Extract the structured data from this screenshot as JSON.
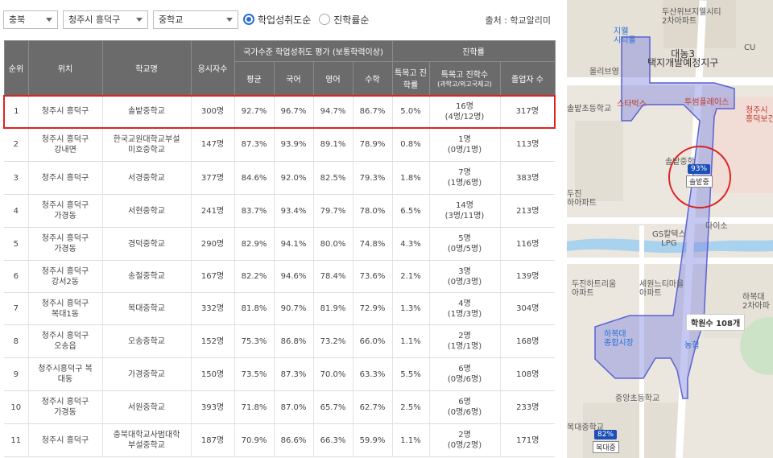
{
  "filters": {
    "region": "충북",
    "district": "청주시 흥덕구",
    "level": "중학교",
    "sort_options": [
      "학업성취도순",
      "진학률순"
    ],
    "source": "출처 : 학교알리미"
  },
  "table": {
    "headers": {
      "rank": "순위",
      "location": "위치",
      "school": "학교명",
      "examinees": "응시자수",
      "national_group": "국가수준 학업성취도 평가 (보통학력이상)",
      "avg": "평균",
      "korean": "국어",
      "english": "영어",
      "math": "수학",
      "advance_group": "진학률",
      "special_rate": "특목고 진학률",
      "special_count": "특목고 진학수",
      "special_count_sub": "(과학고/외고국제고)",
      "graduates": "졸업자 수"
    },
    "rows": [
      {
        "rank": "1",
        "loc": [
          "청주시 흥덕구"
        ],
        "school": [
          "솔밭중학교"
        ],
        "n": "300명",
        "avg": "92.7%",
        "kor": "96.7%",
        "eng": "94.7%",
        "math": "86.7%",
        "rate": "5.0%",
        "cnt": [
          "16명",
          "(4명/12명)"
        ],
        "grad": "317명"
      },
      {
        "rank": "2",
        "loc": [
          "청주시 흥덕구",
          "강내면"
        ],
        "school": [
          "한국교원대학교부설",
          "미호중학교"
        ],
        "n": "147명",
        "avg": "87.3%",
        "kor": "93.9%",
        "eng": "89.1%",
        "math": "78.9%",
        "rate": "0.8%",
        "cnt": [
          "1명",
          "(0명/1명)"
        ],
        "grad": "113명"
      },
      {
        "rank": "3",
        "loc": [
          "청주시 흥덕구"
        ],
        "school": [
          "서경중학교"
        ],
        "n": "377명",
        "avg": "84.6%",
        "kor": "92.0%",
        "eng": "82.5%",
        "math": "79.3%",
        "rate": "1.8%",
        "cnt": [
          "7명",
          "(1명/6명)"
        ],
        "grad": "383명"
      },
      {
        "rank": "4",
        "loc": [
          "청주시 흥덕구",
          "가경동"
        ],
        "school": [
          "서현중학교"
        ],
        "n": "241명",
        "avg": "83.7%",
        "kor": "93.4%",
        "eng": "79.7%",
        "math": "78.0%",
        "rate": "6.5%",
        "cnt": [
          "14명",
          "(3명/11명)"
        ],
        "grad": "213명"
      },
      {
        "rank": "5",
        "loc": [
          "청주시 흥덕구",
          "가경동"
        ],
        "school": [
          "경덕중학교"
        ],
        "n": "290명",
        "avg": "82.9%",
        "kor": "94.1%",
        "eng": "80.0%",
        "math": "74.8%",
        "rate": "4.3%",
        "cnt": [
          "5명",
          "(0명/5명)"
        ],
        "grad": "116명"
      },
      {
        "rank": "6",
        "loc": [
          "청주시 흥덕구",
          "강서2동"
        ],
        "school": [
          "송절중학교"
        ],
        "n": "167명",
        "avg": "82.2%",
        "kor": "94.6%",
        "eng": "78.4%",
        "math": "73.6%",
        "rate": "2.1%",
        "cnt": [
          "3명",
          "(0명/3명)"
        ],
        "grad": "139명"
      },
      {
        "rank": "7",
        "loc": [
          "청주시 흥덕구",
          "복대1동"
        ],
        "school": [
          "복대중학교"
        ],
        "n": "332명",
        "avg": "81.8%",
        "kor": "90.7%",
        "eng": "81.9%",
        "math": "72.9%",
        "rate": "1.3%",
        "cnt": [
          "4명",
          "(1명/3명)"
        ],
        "grad": "304명"
      },
      {
        "rank": "8",
        "loc": [
          "청주시 흥덕구",
          "오송읍"
        ],
        "school": [
          "오송중학교"
        ],
        "n": "152명",
        "avg": "75.3%",
        "kor": "86.8%",
        "eng": "73.2%",
        "math": "66.0%",
        "rate": "1.1%",
        "cnt": [
          "2명",
          "(1명/1명)"
        ],
        "grad": "168명"
      },
      {
        "rank": "9",
        "loc": [
          "청주시흥덕구 복",
          "대동"
        ],
        "school": [
          "가경중학교"
        ],
        "n": "150명",
        "avg": "73.5%",
        "kor": "87.3%",
        "eng": "70.0%",
        "math": "63.3%",
        "rate": "5.5%",
        "cnt": [
          "6명",
          "(0명/6명)"
        ],
        "grad": "108명"
      },
      {
        "rank": "10",
        "loc": [
          "청주시 흥덕구",
          "가경동"
        ],
        "school": [
          "서원중학교"
        ],
        "n": "393명",
        "avg": "71.8%",
        "kor": "87.0%",
        "eng": "65.7%",
        "math": "62.7%",
        "rate": "2.5%",
        "cnt": [
          "6명",
          "(0명/6명)"
        ],
        "grad": "233명"
      },
      {
        "rank": "11",
        "loc": [
          "청주시 흥덕구"
        ],
        "school": [
          "충북대학교사범대학",
          "부설중학교"
        ],
        "n": "187명",
        "avg": "70.9%",
        "kor": "86.6%",
        "eng": "66.3%",
        "math": "59.9%",
        "rate": "1.1%",
        "cnt": [
          "2명",
          "(0명/2명)"
        ],
        "grad": "171명"
      }
    ]
  },
  "map": {
    "labels": {
      "jibel": "지웰\n시티몰",
      "dusan": "두산위브지웰시티\n2차아파트",
      "cu": "CU",
      "daenong": "대농3\n택지개발예정지구",
      "olive": "올리브영",
      "starbucks": "스타벅스",
      "tousplace": "투썸플레이스",
      "solbat_elem": "솔밭초등학교",
      "health": "청주시\n흥덕보건",
      "solbat_mid_top": "솔밭중학",
      "dujin": "두진\n하아파트",
      "daiso": "다이소",
      "gs": "GS칼텍스\nLPG",
      "dujin_harim": "두진하트리움\n아파트",
      "sewon": "세원느티마을\n아파트",
      "habok": "하복대\n2차아파",
      "habok_market": "하복대\n종합시장",
      "nh": "농협",
      "joongang": "중앙초등학교",
      "bokdae": "복대중학교"
    },
    "pins": {
      "solbat_pct": "93%",
      "solbat_name": "솔밭중",
      "bokdae_pct": "82%",
      "bokdae_name": "복대중"
    },
    "academy_count": "학원수 108개"
  }
}
